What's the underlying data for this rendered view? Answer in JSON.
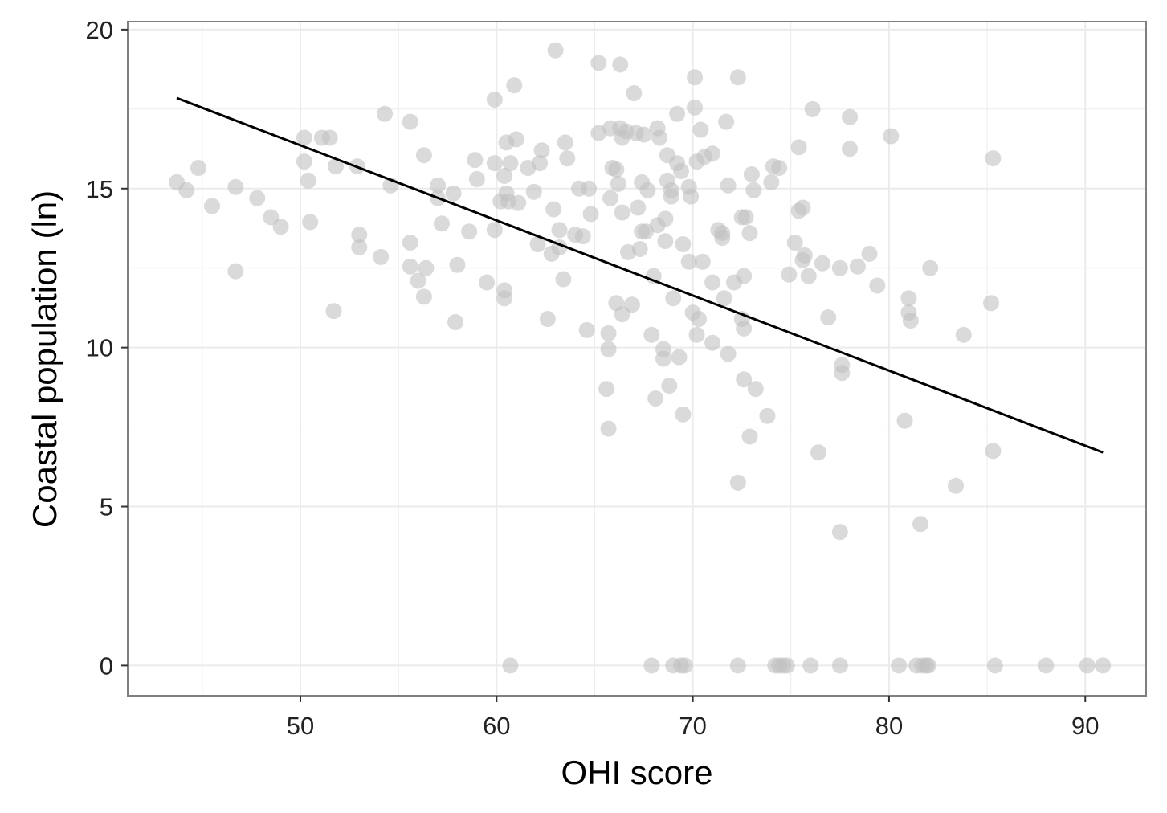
{
  "chart_data": {
    "type": "scatter",
    "title": "",
    "xlabel": "OHI score",
    "ylabel": "Coastal population (ln)",
    "xlim": [
      41.2,
      93.1
    ],
    "ylim": [
      -0.95,
      20.25
    ],
    "x_ticks": [
      50,
      60,
      70,
      80,
      90
    ],
    "y_ticks": [
      0,
      5,
      10,
      15,
      20
    ],
    "grid": true,
    "legend": "none",
    "colors": {
      "points": "#c2c2c2",
      "trend_line": "#000000",
      "panel_border": "#7f7f7f",
      "grid": "#ebebeb"
    },
    "trend_line": {
      "x": [
        43.7,
        90.9
      ],
      "y": [
        17.85,
        6.7
      ]
    },
    "points": [
      {
        "x": 43.7,
        "y": 15.2
      },
      {
        "x": 44.2,
        "y": 14.95
      },
      {
        "x": 44.8,
        "y": 15.65
      },
      {
        "x": 45.5,
        "y": 14.45
      },
      {
        "x": 46.7,
        "y": 15.05
      },
      {
        "x": 46.7,
        "y": 12.4
      },
      {
        "x": 47.8,
        "y": 14.7
      },
      {
        "x": 48.5,
        "y": 14.1
      },
      {
        "x": 49.0,
        "y": 13.8
      },
      {
        "x": 50.2,
        "y": 16.6
      },
      {
        "x": 50.2,
        "y": 15.85
      },
      {
        "x": 50.4,
        "y": 15.25
      },
      {
        "x": 50.5,
        "y": 13.95
      },
      {
        "x": 51.1,
        "y": 16.6
      },
      {
        "x": 51.5,
        "y": 16.6
      },
      {
        "x": 51.7,
        "y": 11.15
      },
      {
        "x": 51.8,
        "y": 15.7
      },
      {
        "x": 52.9,
        "y": 15.7
      },
      {
        "x": 53.0,
        "y": 13.55
      },
      {
        "x": 53.0,
        "y": 13.15
      },
      {
        "x": 54.1,
        "y": 12.85
      },
      {
        "x": 54.3,
        "y": 17.35
      },
      {
        "x": 54.6,
        "y": 15.1
      },
      {
        "x": 55.6,
        "y": 17.1
      },
      {
        "x": 55.6,
        "y": 13.3
      },
      {
        "x": 55.6,
        "y": 12.55
      },
      {
        "x": 56.0,
        "y": 12.1
      },
      {
        "x": 56.3,
        "y": 16.05
      },
      {
        "x": 56.3,
        "y": 11.6
      },
      {
        "x": 56.4,
        "y": 12.5
      },
      {
        "x": 57.0,
        "y": 15.1
      },
      {
        "x": 57.0,
        "y": 14.7
      },
      {
        "x": 57.2,
        "y": 13.9
      },
      {
        "x": 57.8,
        "y": 14.85
      },
      {
        "x": 57.9,
        "y": 10.8
      },
      {
        "x": 58.0,
        "y": 12.6
      },
      {
        "x": 58.6,
        "y": 13.65
      },
      {
        "x": 58.9,
        "y": 15.9
      },
      {
        "x": 59.0,
        "y": 15.3
      },
      {
        "x": 59.5,
        "y": 12.05
      },
      {
        "x": 59.9,
        "y": 17.8
      },
      {
        "x": 59.9,
        "y": 15.8
      },
      {
        "x": 59.9,
        "y": 13.7
      },
      {
        "x": 60.2,
        "y": 14.6
      },
      {
        "x": 60.4,
        "y": 15.4
      },
      {
        "x": 60.4,
        "y": 11.8
      },
      {
        "x": 60.4,
        "y": 11.55
      },
      {
        "x": 60.5,
        "y": 16.45
      },
      {
        "x": 60.5,
        "y": 14.85
      },
      {
        "x": 60.6,
        "y": 14.6
      },
      {
        "x": 60.7,
        "y": 15.8
      },
      {
        "x": 60.7,
        "y": 0
      },
      {
        "x": 60.9,
        "y": 18.25
      },
      {
        "x": 61.0,
        "y": 16.55
      },
      {
        "x": 61.1,
        "y": 14.55
      },
      {
        "x": 61.6,
        "y": 15.65
      },
      {
        "x": 61.9,
        "y": 14.9
      },
      {
        "x": 62.1,
        "y": 13.25
      },
      {
        "x": 62.2,
        "y": 15.8
      },
      {
        "x": 62.3,
        "y": 16.2
      },
      {
        "x": 62.6,
        "y": 10.9
      },
      {
        "x": 62.8,
        "y": 12.95
      },
      {
        "x": 62.9,
        "y": 14.35
      },
      {
        "x": 63.0,
        "y": 19.35
      },
      {
        "x": 63.2,
        "y": 13.7
      },
      {
        "x": 63.2,
        "y": 13.15
      },
      {
        "x": 63.4,
        "y": 12.15
      },
      {
        "x": 63.5,
        "y": 16.45
      },
      {
        "x": 63.6,
        "y": 15.95
      },
      {
        "x": 64.0,
        "y": 13.55
      },
      {
        "x": 64.2,
        "y": 15.0
      },
      {
        "x": 64.4,
        "y": 13.5
      },
      {
        "x": 64.6,
        "y": 10.55
      },
      {
        "x": 64.7,
        "y": 15.0
      },
      {
        "x": 64.8,
        "y": 14.2
      },
      {
        "x": 65.2,
        "y": 18.95
      },
      {
        "x": 65.2,
        "y": 16.75
      },
      {
        "x": 65.6,
        "y": 8.7
      },
      {
        "x": 65.7,
        "y": 10.45
      },
      {
        "x": 65.7,
        "y": 9.95
      },
      {
        "x": 65.7,
        "y": 7.45
      },
      {
        "x": 65.8,
        "y": 16.9
      },
      {
        "x": 65.8,
        "y": 14.7
      },
      {
        "x": 65.9,
        "y": 15.65
      },
      {
        "x": 66.1,
        "y": 11.4
      },
      {
        "x": 66.1,
        "y": 15.6
      },
      {
        "x": 66.2,
        "y": 15.15
      },
      {
        "x": 66.3,
        "y": 18.9
      },
      {
        "x": 66.3,
        "y": 16.9
      },
      {
        "x": 66.4,
        "y": 16.6
      },
      {
        "x": 66.4,
        "y": 14.25
      },
      {
        "x": 66.4,
        "y": 11.05
      },
      {
        "x": 66.6,
        "y": 16.8
      },
      {
        "x": 66.7,
        "y": 13.0
      },
      {
        "x": 66.9,
        "y": 11.35
      },
      {
        "x": 67.0,
        "y": 18.0
      },
      {
        "x": 67.1,
        "y": 16.75
      },
      {
        "x": 67.2,
        "y": 14.4
      },
      {
        "x": 67.3,
        "y": 13.1
      },
      {
        "x": 67.4,
        "y": 15.2
      },
      {
        "x": 67.4,
        "y": 13.65
      },
      {
        "x": 67.5,
        "y": 16.7
      },
      {
        "x": 67.6,
        "y": 13.65
      },
      {
        "x": 67.7,
        "y": 14.95
      },
      {
        "x": 67.9,
        "y": 10.4
      },
      {
        "x": 67.9,
        "y": 0
      },
      {
        "x": 68.0,
        "y": 12.25
      },
      {
        "x": 68.1,
        "y": 8.4
      },
      {
        "x": 68.2,
        "y": 16.9
      },
      {
        "x": 68.2,
        "y": 13.85
      },
      {
        "x": 68.3,
        "y": 16.6
      },
      {
        "x": 68.5,
        "y": 9.95
      },
      {
        "x": 68.5,
        "y": 9.65
      },
      {
        "x": 68.6,
        "y": 14.05
      },
      {
        "x": 68.6,
        "y": 13.35
      },
      {
        "x": 68.7,
        "y": 16.05
      },
      {
        "x": 68.7,
        "y": 15.25
      },
      {
        "x": 68.8,
        "y": 8.8
      },
      {
        "x": 68.9,
        "y": 14.95
      },
      {
        "x": 68.9,
        "y": 14.75
      },
      {
        "x": 69.0,
        "y": 11.55
      },
      {
        "x": 69.0,
        "y": 0
      },
      {
        "x": 69.2,
        "y": 15.8
      },
      {
        "x": 69.2,
        "y": 17.35
      },
      {
        "x": 69.3,
        "y": 9.7
      },
      {
        "x": 69.4,
        "y": 15.55
      },
      {
        "x": 69.4,
        "y": 0
      },
      {
        "x": 69.5,
        "y": 13.25
      },
      {
        "x": 69.5,
        "y": 7.9
      },
      {
        "x": 69.6,
        "y": 0
      },
      {
        "x": 69.8,
        "y": 12.7
      },
      {
        "x": 69.8,
        "y": 15.05
      },
      {
        "x": 69.9,
        "y": 14.75
      },
      {
        "x": 70.0,
        "y": 11.1
      },
      {
        "x": 70.1,
        "y": 18.5
      },
      {
        "x": 70.1,
        "y": 17.55
      },
      {
        "x": 70.2,
        "y": 15.85
      },
      {
        "x": 70.2,
        "y": 10.4
      },
      {
        "x": 70.3,
        "y": 10.9
      },
      {
        "x": 70.4,
        "y": 16.85
      },
      {
        "x": 70.5,
        "y": 12.7
      },
      {
        "x": 70.6,
        "y": 16.0
      },
      {
        "x": 71.0,
        "y": 16.1
      },
      {
        "x": 71.0,
        "y": 12.05
      },
      {
        "x": 71.0,
        "y": 10.15
      },
      {
        "x": 71.3,
        "y": 13.7
      },
      {
        "x": 71.5,
        "y": 13.45
      },
      {
        "x": 71.5,
        "y": 13.6
      },
      {
        "x": 71.6,
        "y": 11.55
      },
      {
        "x": 71.7,
        "y": 17.1
      },
      {
        "x": 71.8,
        "y": 15.1
      },
      {
        "x": 71.8,
        "y": 9.8
      },
      {
        "x": 72.1,
        "y": 12.05
      },
      {
        "x": 72.3,
        "y": 18.5
      },
      {
        "x": 72.3,
        "y": 5.75
      },
      {
        "x": 72.3,
        "y": 0
      },
      {
        "x": 72.5,
        "y": 14.1
      },
      {
        "x": 72.5,
        "y": 10.9
      },
      {
        "x": 72.6,
        "y": 12.25
      },
      {
        "x": 72.6,
        "y": 10.6
      },
      {
        "x": 72.6,
        "y": 9.0
      },
      {
        "x": 72.7,
        "y": 14.1
      },
      {
        "x": 72.9,
        "y": 13.6
      },
      {
        "x": 72.9,
        "y": 7.2
      },
      {
        "x": 73.0,
        "y": 15.45
      },
      {
        "x": 73.1,
        "y": 14.95
      },
      {
        "x": 73.2,
        "y": 8.7
      },
      {
        "x": 73.8,
        "y": 7.85
      },
      {
        "x": 74.0,
        "y": 15.2
      },
      {
        "x": 74.1,
        "y": 15.7
      },
      {
        "x": 74.2,
        "y": 0
      },
      {
        "x": 74.4,
        "y": 15.65
      },
      {
        "x": 74.4,
        "y": 0
      },
      {
        "x": 74.6,
        "y": 0
      },
      {
        "x": 74.8,
        "y": 0
      },
      {
        "x": 74.9,
        "y": 12.3
      },
      {
        "x": 75.2,
        "y": 13.3
      },
      {
        "x": 75.4,
        "y": 16.3
      },
      {
        "x": 75.4,
        "y": 14.3
      },
      {
        "x": 75.6,
        "y": 14.4
      },
      {
        "x": 75.6,
        "y": 12.75
      },
      {
        "x": 75.7,
        "y": 12.9
      },
      {
        "x": 75.9,
        "y": 12.25
      },
      {
        "x": 76.0,
        "y": 0
      },
      {
        "x": 76.1,
        "y": 17.5
      },
      {
        "x": 76.4,
        "y": 6.7
      },
      {
        "x": 76.6,
        "y": 12.65
      },
      {
        "x": 76.9,
        "y": 10.95
      },
      {
        "x": 77.5,
        "y": 12.5
      },
      {
        "x": 77.5,
        "y": 4.2
      },
      {
        "x": 77.5,
        "y": 0
      },
      {
        "x": 77.6,
        "y": 9.45
      },
      {
        "x": 77.6,
        "y": 9.2
      },
      {
        "x": 78.0,
        "y": 17.25
      },
      {
        "x": 78.0,
        "y": 16.25
      },
      {
        "x": 78.4,
        "y": 12.55
      },
      {
        "x": 79.0,
        "y": 12.95
      },
      {
        "x": 79.4,
        "y": 11.95
      },
      {
        "x": 80.1,
        "y": 16.65
      },
      {
        "x": 80.5,
        "y": 0
      },
      {
        "x": 80.8,
        "y": 7.7
      },
      {
        "x": 81.0,
        "y": 11.55
      },
      {
        "x": 81.0,
        "y": 11.1
      },
      {
        "x": 81.1,
        "y": 10.85
      },
      {
        "x": 81.4,
        "y": 0
      },
      {
        "x": 81.6,
        "y": 4.45
      },
      {
        "x": 81.7,
        "y": 0
      },
      {
        "x": 81.9,
        "y": 0
      },
      {
        "x": 82.0,
        "y": 0
      },
      {
        "x": 82.1,
        "y": 12.5
      },
      {
        "x": 83.4,
        "y": 5.65
      },
      {
        "x": 83.8,
        "y": 10.4
      },
      {
        "x": 85.2,
        "y": 11.4
      },
      {
        "x": 85.3,
        "y": 15.95
      },
      {
        "x": 85.3,
        "y": 6.75
      },
      {
        "x": 85.4,
        "y": 0
      },
      {
        "x": 88.0,
        "y": 0
      },
      {
        "x": 90.1,
        "y": 0
      },
      {
        "x": 90.9,
        "y": 0
      }
    ]
  }
}
